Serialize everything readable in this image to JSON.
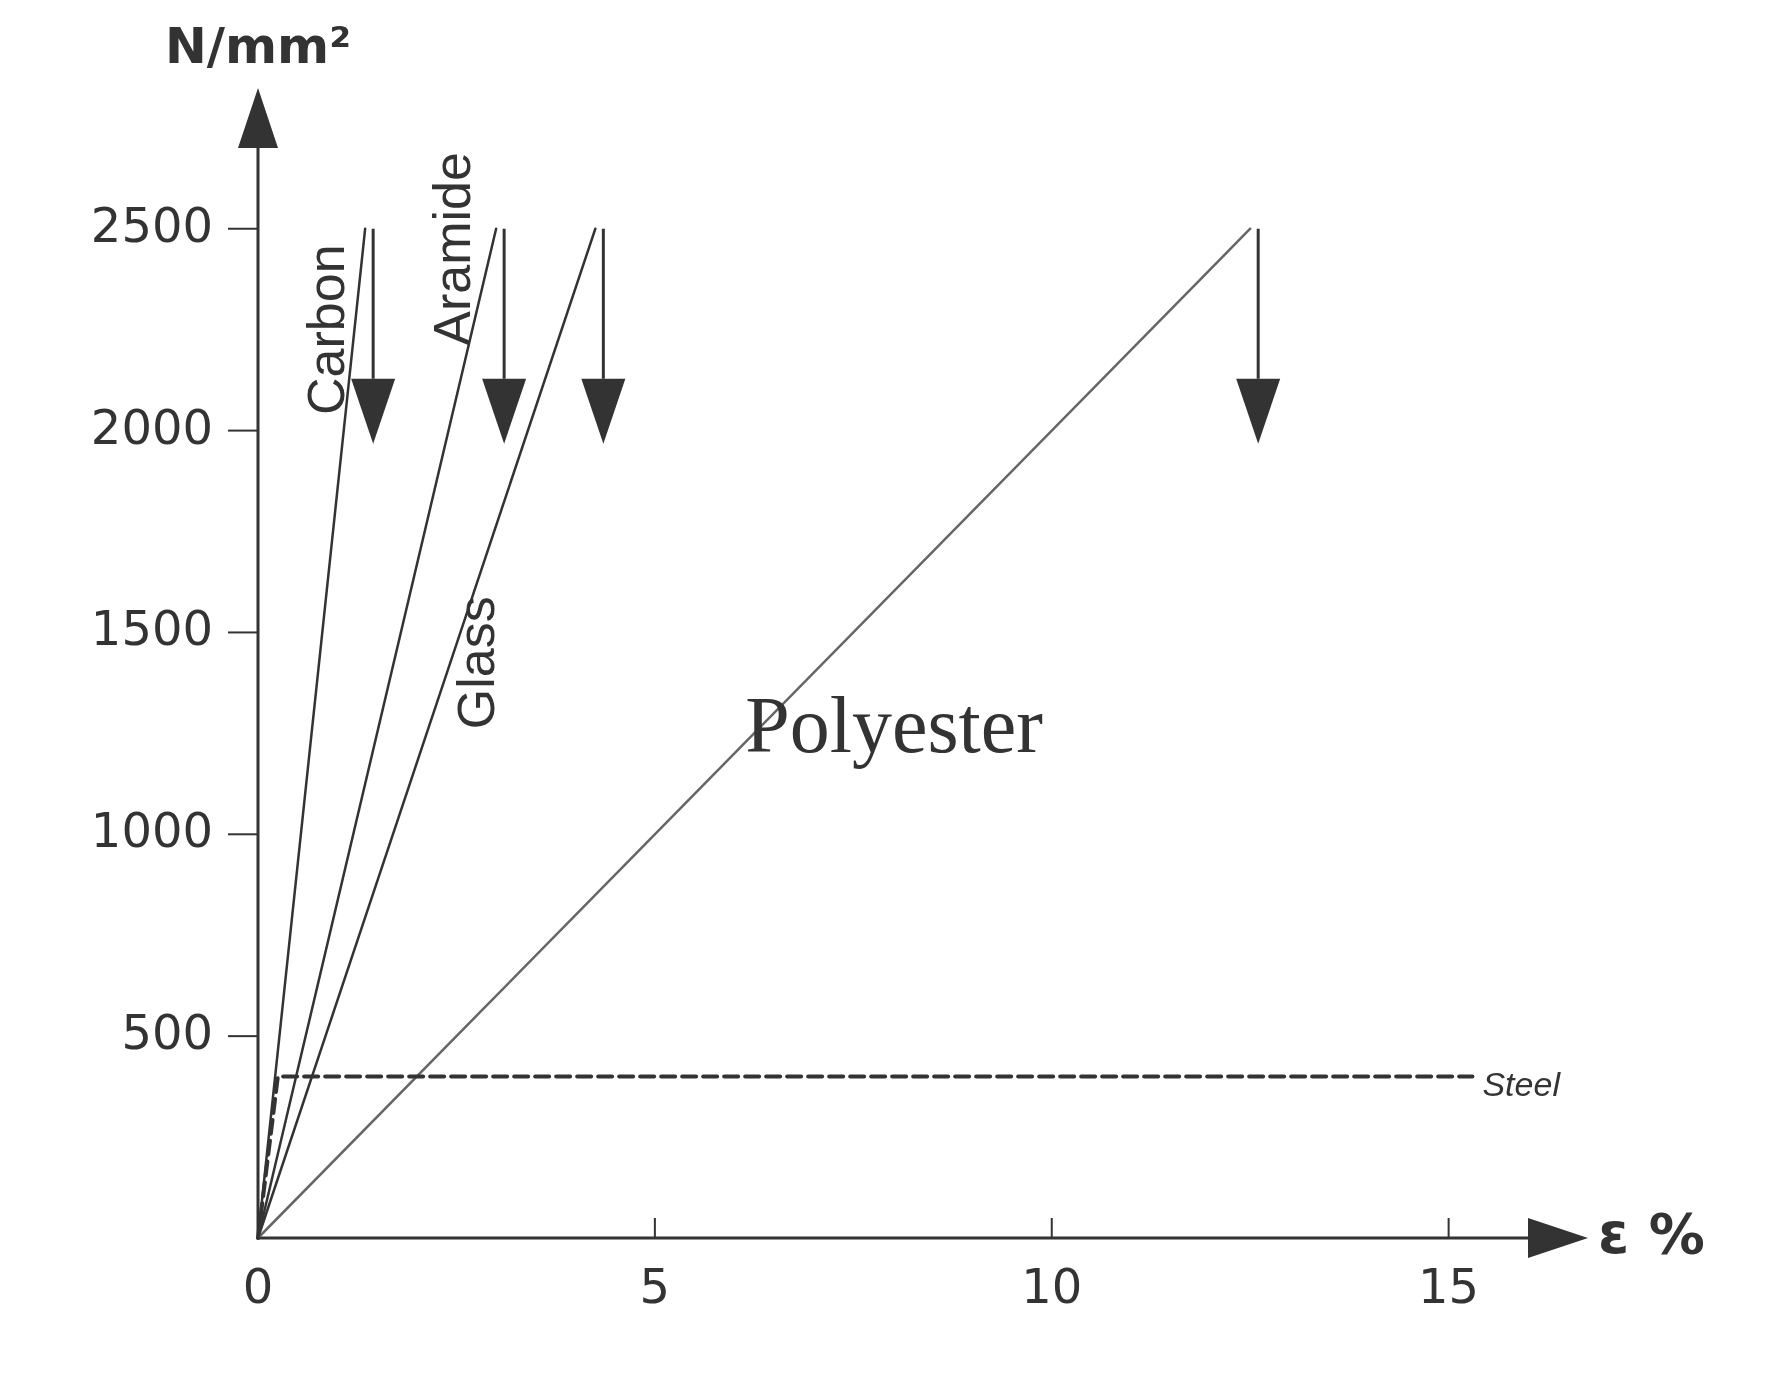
{
  "chart_data": {
    "type": "line",
    "xlabel": "ε %",
    "ylabel": "N/mm²",
    "xlim": [
      0,
      16
    ],
    "ylim": [
      0,
      2700
    ],
    "xticks": [
      0,
      5,
      10,
      15
    ],
    "yticks": [
      500,
      1000,
      1500,
      2000,
      2500
    ],
    "grid": false,
    "marker": "none",
    "series": [
      {
        "name": "Carbon",
        "color": "#333333",
        "x": [
          0,
          1.35
        ],
        "values": [
          0,
          2500
        ],
        "line_style": "solid"
      },
      {
        "name": "Aramide",
        "color": "#333333",
        "x": [
          0,
          3.0
        ],
        "values": [
          0,
          2500
        ],
        "line_style": "solid"
      },
      {
        "name": "Glass",
        "color": "#333333",
        "x": [
          0,
          4.25
        ],
        "values": [
          0,
          2500
        ],
        "line_style": "solid"
      },
      {
        "name": "Polyester",
        "color": "#666666",
        "x": [
          0,
          12.5
        ],
        "values": [
          0,
          2500
        ],
        "line_style": "solid"
      },
      {
        "name": "Steel",
        "color": "#333333",
        "x": [
          0,
          0.25,
          15.3
        ],
        "values": [
          0,
          400,
          400
        ],
        "line_style": "dashed"
      }
    ]
  }
}
